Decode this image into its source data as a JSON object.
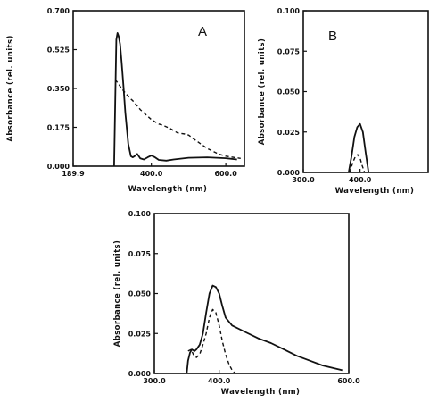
{
  "chart_data": [
    {
      "panel_label": "A",
      "type": "line",
      "xlabel": "Wavelength  (nm)",
      "ylabel": "Absorbance  (rel. units)",
      "xlim": [
        189.9,
        650
      ],
      "ylim": [
        0,
        0.7
      ],
      "x_ticks": [
        189.9,
        400.0,
        600.0
      ],
      "x_tick_labels": [
        "189.9",
        "400.0",
        "600.0"
      ],
      "y_ticks": [
        0,
        0.175,
        0.35,
        0.525,
        0.7
      ],
      "y_tick_labels": [
        "0.000",
        "0.175",
        "0.350",
        "0.525",
        "0.700"
      ],
      "grid": false,
      "series": [
        {
          "style": "solid",
          "x": [
            300,
            303,
            306,
            309,
            312,
            316,
            320,
            325,
            330,
            338,
            345,
            350,
            355,
            362,
            370,
            380,
            390,
            400,
            410,
            420,
            440,
            460,
            500,
            550,
            600,
            630
          ],
          "y": [
            0.0,
            0.3,
            0.57,
            0.6,
            0.585,
            0.55,
            0.47,
            0.36,
            0.24,
            0.1,
            0.045,
            0.04,
            0.045,
            0.055,
            0.035,
            0.03,
            0.04,
            0.048,
            0.04,
            0.028,
            0.025,
            0.03,
            0.038,
            0.04,
            0.036,
            0.03
          ]
        },
        {
          "style": "dashed",
          "x": [
            303,
            310,
            320,
            330,
            340,
            350,
            360,
            370,
            380,
            390,
            400,
            410,
            420,
            430,
            450,
            470,
            490,
            500,
            520,
            550,
            580,
            600,
            620,
            640
          ],
          "y": [
            0.39,
            0.375,
            0.35,
            0.33,
            0.31,
            0.295,
            0.275,
            0.255,
            0.24,
            0.225,
            0.21,
            0.2,
            0.19,
            0.185,
            0.17,
            0.15,
            0.145,
            0.14,
            0.115,
            0.08,
            0.055,
            0.045,
            0.04,
            0.035
          ]
        }
      ]
    },
    {
      "panel_label": "B",
      "type": "line",
      "xlabel": "Wavelength  (nm)",
      "ylabel": "Absorbance  (rel. units)",
      "xlim": [
        300,
        520
      ],
      "ylim": [
        0,
        0.1
      ],
      "x_ticks": [
        300.0,
        400.0
      ],
      "x_tick_labels": [
        "300.0",
        "400.0"
      ],
      "y_ticks": [
        0,
        0.025,
        0.05,
        0.075,
        0.1
      ],
      "y_tick_labels": [
        "0.000",
        "0.025",
        "0.050",
        "0.075",
        "0.100"
      ],
      "grid": false,
      "series": [
        {
          "style": "solid",
          "x": [
            380,
            385,
            390,
            395,
            400,
            405,
            410,
            415
          ],
          "y": [
            0.0,
            0.01,
            0.022,
            0.028,
            0.03,
            0.025,
            0.012,
            0.0
          ]
        },
        {
          "style": "dashed",
          "x": [
            382,
            387,
            392,
            396,
            400,
            404,
            408
          ],
          "y": [
            0.0,
            0.006,
            0.01,
            0.011,
            0.009,
            0.004,
            0.0
          ]
        }
      ]
    },
    {
      "panel_label": "",
      "type": "line",
      "xlabel": "Wavelength  (nm)",
      "ylabel": "Absorbance  (rel. units)",
      "xlim": [
        300,
        600
      ],
      "ylim": [
        0,
        0.1
      ],
      "x_ticks": [
        300.0,
        400.0,
        600.0
      ],
      "x_tick_labels": [
        "300.0",
        "400.0",
        "600.0"
      ],
      "y_ticks": [
        0,
        0.025,
        0.05,
        0.075,
        0.1
      ],
      "y_tick_labels": [
        "0.000",
        "0.025",
        "0.050",
        "0.075",
        "0.100"
      ],
      "grid": false,
      "series": [
        {
          "style": "solid",
          "x": [
            350,
            352,
            355,
            358,
            362,
            365,
            370,
            375,
            380,
            385,
            390,
            395,
            400,
            405,
            410,
            420,
            440,
            460,
            480,
            500,
            520,
            540,
            560,
            580,
            590
          ],
          "y": [
            0.0,
            0.008,
            0.013,
            0.015,
            0.014,
            0.015,
            0.018,
            0.025,
            0.038,
            0.05,
            0.055,
            0.054,
            0.05,
            0.042,
            0.035,
            0.03,
            0.026,
            0.022,
            0.019,
            0.015,
            0.011,
            0.008,
            0.005,
            0.003,
            0.002
          ]
        },
        {
          "style": "dashed",
          "x": [
            352,
            357,
            360,
            365,
            370,
            375,
            380,
            385,
            390,
            395,
            400,
            405,
            410,
            415,
            420,
            425
          ],
          "y": [
            0.014,
            0.015,
            0.012,
            0.01,
            0.012,
            0.018,
            0.025,
            0.035,
            0.04,
            0.038,
            0.03,
            0.02,
            0.012,
            0.006,
            0.002,
            0.0
          ]
        }
      ]
    }
  ]
}
